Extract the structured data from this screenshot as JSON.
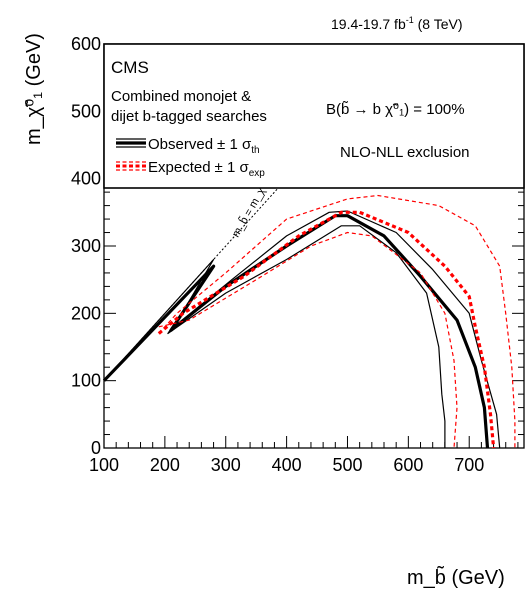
{
  "lumi_label": "19.4-19.7 fb",
  "lumi_sup": "-1",
  "lumi_suffix": " (8 TeV)",
  "cms_label": "CMS",
  "analysis_line1": "Combined monojet &",
  "analysis_line2": "dijet b-tagged searches",
  "legend": {
    "observed_label": "Observed",
    "observed_pm": "± 1 σ",
    "observed_sub": "th",
    "expected_label": "Expected",
    "expected_pm": "± 1 σ",
    "expected_sub": "exp"
  },
  "br_label": "B(b̃ → b χ̃⁰₁) = 100%",
  "order_label": "NLO-NLL exclusion",
  "diag_label": "m_b̃ = m_χ̃",
  "xlabel": "m_b̃ (GeV)",
  "ylabel": "m_χ̃⁰₁ (GeV)",
  "colors": {
    "observed": "#000000",
    "expected": "#ff0000",
    "diagonal": "#000000"
  },
  "chart_data": {
    "type": "line",
    "title": "",
    "xlim": [
      100,
      790
    ],
    "ylim": [
      0,
      600
    ],
    "x_ticks": [
      100,
      200,
      300,
      400,
      500,
      600,
      700
    ],
    "y_ticks": [
      0,
      100,
      200,
      300,
      400,
      500,
      600
    ],
    "series": [
      {
        "name": "Observed",
        "style": "observed-central",
        "points": [
          [
            100,
            100
          ],
          [
            280,
            270
          ],
          [
            210,
            175
          ],
          [
            300,
            240
          ],
          [
            400,
            300
          ],
          [
            480,
            345
          ],
          [
            500,
            345
          ],
          [
            560,
            315
          ],
          [
            620,
            255
          ],
          [
            680,
            190
          ],
          [
            710,
            120
          ],
          [
            725,
            60
          ],
          [
            730,
            0
          ]
        ]
      },
      {
        "name": "Observed",
        "style": "observed-band",
        "points": [
          [
            100,
            100
          ],
          [
            280,
            280
          ],
          [
            215,
            180
          ],
          [
            310,
            250
          ],
          [
            400,
            315
          ],
          [
            470,
            350
          ],
          [
            500,
            352
          ],
          [
            580,
            320
          ],
          [
            640,
            265
          ],
          [
            700,
            200
          ],
          [
            720,
            130
          ],
          [
            745,
            50
          ],
          [
            750,
            0
          ]
        ]
      },
      {
        "name": "Observed",
        "style": "observed-band",
        "points": [
          [
            100,
            100
          ],
          [
            275,
            265
          ],
          [
            205,
            170
          ],
          [
            300,
            230
          ],
          [
            400,
            280
          ],
          [
            490,
            330
          ],
          [
            520,
            330
          ],
          [
            580,
            290
          ],
          [
            630,
            230
          ],
          [
            650,
            150
          ],
          [
            655,
            80
          ],
          [
            660,
            40
          ],
          [
            660,
            0
          ]
        ]
      },
      {
        "name": "Expected",
        "style": "expected-central",
        "points": [
          [
            190,
            170
          ],
          [
            230,
            200
          ],
          [
            330,
            255
          ],
          [
            420,
            315
          ],
          [
            490,
            350
          ],
          [
            520,
            350
          ],
          [
            600,
            320
          ],
          [
            660,
            270
          ],
          [
            700,
            225
          ],
          [
            710,
            180
          ],
          [
            725,
            120
          ],
          [
            735,
            50
          ],
          [
            740,
            0
          ]
        ]
      },
      {
        "name": "Expected",
        "style": "expected-band",
        "points": [
          [
            190,
            170
          ],
          [
            220,
            200
          ],
          [
            300,
            260
          ],
          [
            400,
            340
          ],
          [
            500,
            370
          ],
          [
            550,
            375
          ],
          [
            650,
            360
          ],
          [
            710,
            330
          ],
          [
            750,
            270
          ],
          [
            760,
            200
          ],
          [
            770,
            120
          ],
          [
            775,
            40
          ],
          [
            775,
            0
          ]
        ]
      },
      {
        "name": "Expected",
        "style": "expected-band",
        "points": [
          [
            190,
            180
          ],
          [
            240,
            190
          ],
          [
            350,
            250
          ],
          [
            440,
            300
          ],
          [
            500,
            320
          ],
          [
            540,
            315
          ],
          [
            620,
            260
          ],
          [
            660,
            200
          ],
          [
            675,
            130
          ],
          [
            680,
            60
          ],
          [
            675,
            0
          ]
        ]
      }
    ],
    "diagonal": {
      "points": [
        [
          100,
          100
        ],
        [
          420,
          420
        ]
      ],
      "label": "m_b̃ = m_χ̃"
    },
    "legend_position": "top-left",
    "grid": false
  }
}
